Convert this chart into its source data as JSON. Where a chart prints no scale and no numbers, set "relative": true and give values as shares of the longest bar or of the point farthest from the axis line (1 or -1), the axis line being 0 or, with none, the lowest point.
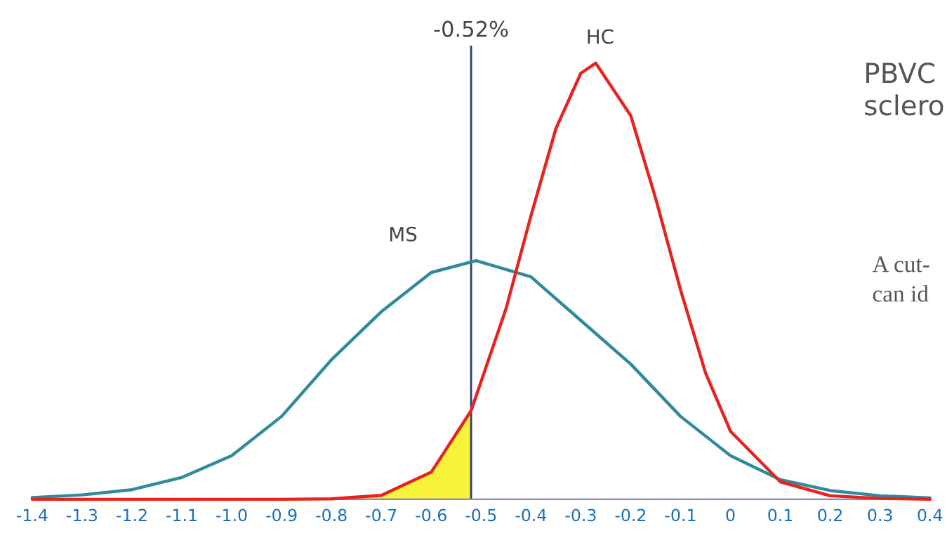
{
  "chart_data": {
    "type": "line",
    "relative": true,
    "xlim": [
      -1.4,
      0.4
    ],
    "xticks": [
      -1.4,
      -1.3,
      -1.2,
      -1.1,
      {
        "value": -1,
        "label": "-1.0"
      },
      -0.9,
      -0.8,
      -0.7,
      -0.6,
      -0.5,
      -0.4,
      -0.3,
      -0.2,
      -0.1,
      0,
      0.1,
      0.2,
      0.3,
      0.4
    ],
    "series": [
      {
        "type": "area",
        "color": "#f7f23a",
        "x": [
          -0.8,
          -0.7,
          -0.6,
          -0.52
        ],
        "values": [
          0.001,
          0.009,
          0.062,
          0.203
        ]
      },
      {
        "name": "MS",
        "color": "#2f8a9e",
        "x": [
          -1.4,
          -1.3,
          -1.2,
          -1.1,
          -1.0,
          -0.9,
          -0.8,
          -0.7,
          -0.6,
          -0.51,
          -0.4,
          -0.3,
          -0.2,
          -0.1,
          0,
          0.1,
          0.2,
          0.3,
          0.4
        ],
        "values": [
          0.004,
          0.01,
          0.022,
          0.05,
          0.1,
          0.19,
          0.32,
          0.43,
          0.52,
          0.547,
          0.51,
          0.41,
          0.31,
          0.19,
          0.1,
          0.045,
          0.02,
          0.008,
          0.003
        ]
      },
      {
        "name": "HC",
        "color": "#e8231e",
        "x": [
          -1.4,
          -0.9,
          -0.8,
          -0.7,
          -0.6,
          -0.52,
          -0.45,
          -0.4,
          -0.35,
          -0.3,
          -0.27,
          -0.2,
          -0.15,
          -0.1,
          -0.05,
          0,
          0.1,
          0.2,
          0.3,
          0.4
        ],
        "values": [
          0,
          0,
          0.001,
          0.009,
          0.062,
          0.203,
          0.437,
          0.65,
          0.85,
          0.977,
          1,
          0.88,
          0.69,
          0.48,
          0.29,
          0.156,
          0.04,
          0.008,
          0.002,
          0
        ]
      }
    ],
    "ref_lines": [
      {
        "axis": "x",
        "value": -0.52,
        "label": "-0.52%",
        "color": "#2c3e70"
      }
    ],
    "annotations": [
      "PBVC",
      "sclero",
      "A cut-",
      "can id"
    ],
    "grid": false,
    "legend": false
  }
}
